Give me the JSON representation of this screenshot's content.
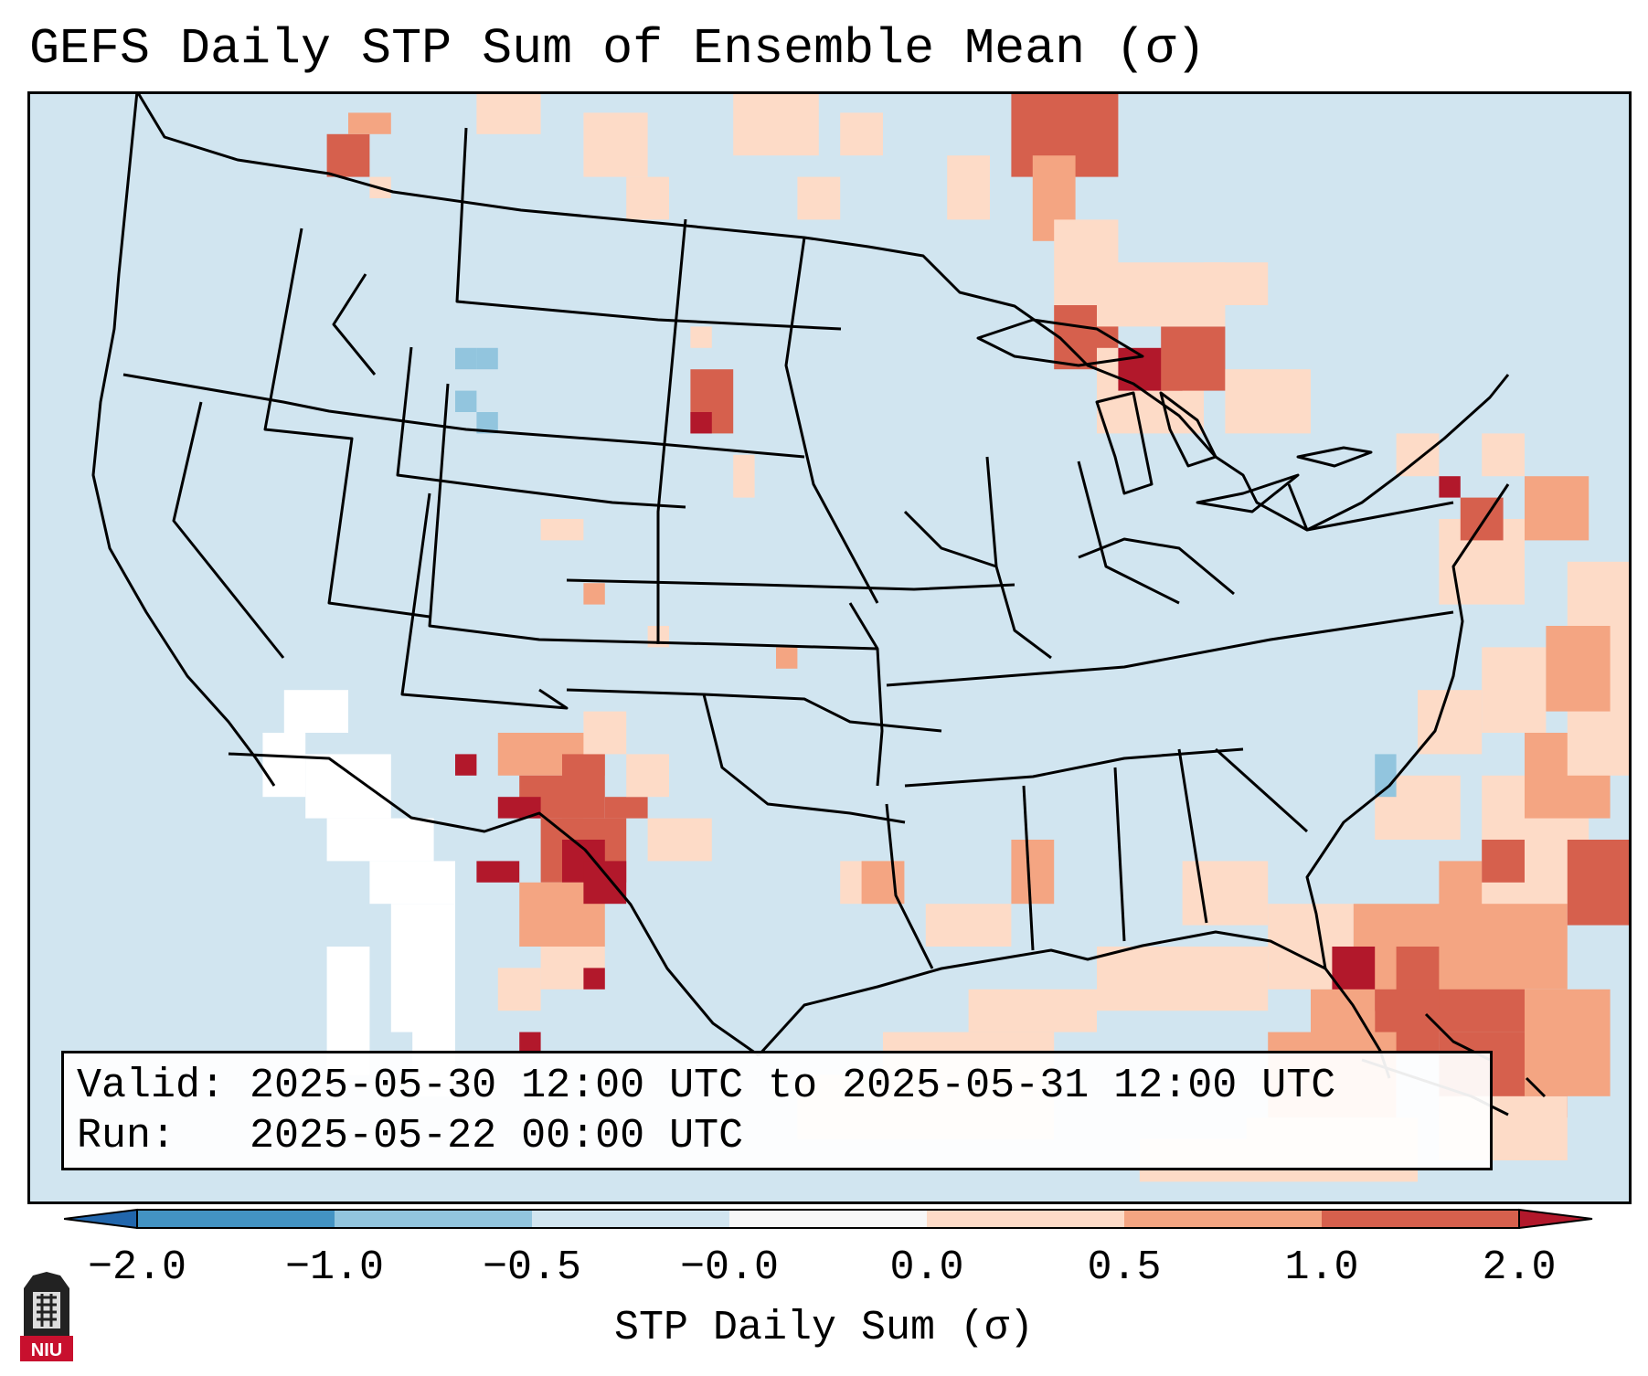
{
  "title": "GEFS Daily STP Sum of Ensemble Mean (σ)",
  "info": {
    "valid_label": "Valid:",
    "valid_value": "2025-05-30 12:00 UTC to 2025-05-31 12:00 UTC",
    "run_label": "Run:",
    "run_value": "2025-05-22 00:00 UTC"
  },
  "colorbar": {
    "label": "STP Daily Sum (σ)",
    "ticks": [
      "−2.0",
      "−1.0",
      "−0.5",
      "−0.0",
      "0.0",
      "0.5",
      "1.0",
      "2.0"
    ],
    "colors": [
      "#4393c3",
      "#92c5de",
      "#d1e5f0",
      "#f7f7f7",
      "#fddbc7",
      "#f4a582",
      "#d6604d"
    ],
    "under_color": "#2166ac",
    "over_color": "#b2182b"
  },
  "map": {
    "background": "#d1e5f0",
    "region": "Contiguous United States, southern Canada, northern Mexico, Gulf of Mexico and western Atlantic"
  },
  "logo": {
    "text": "NIU"
  }
}
